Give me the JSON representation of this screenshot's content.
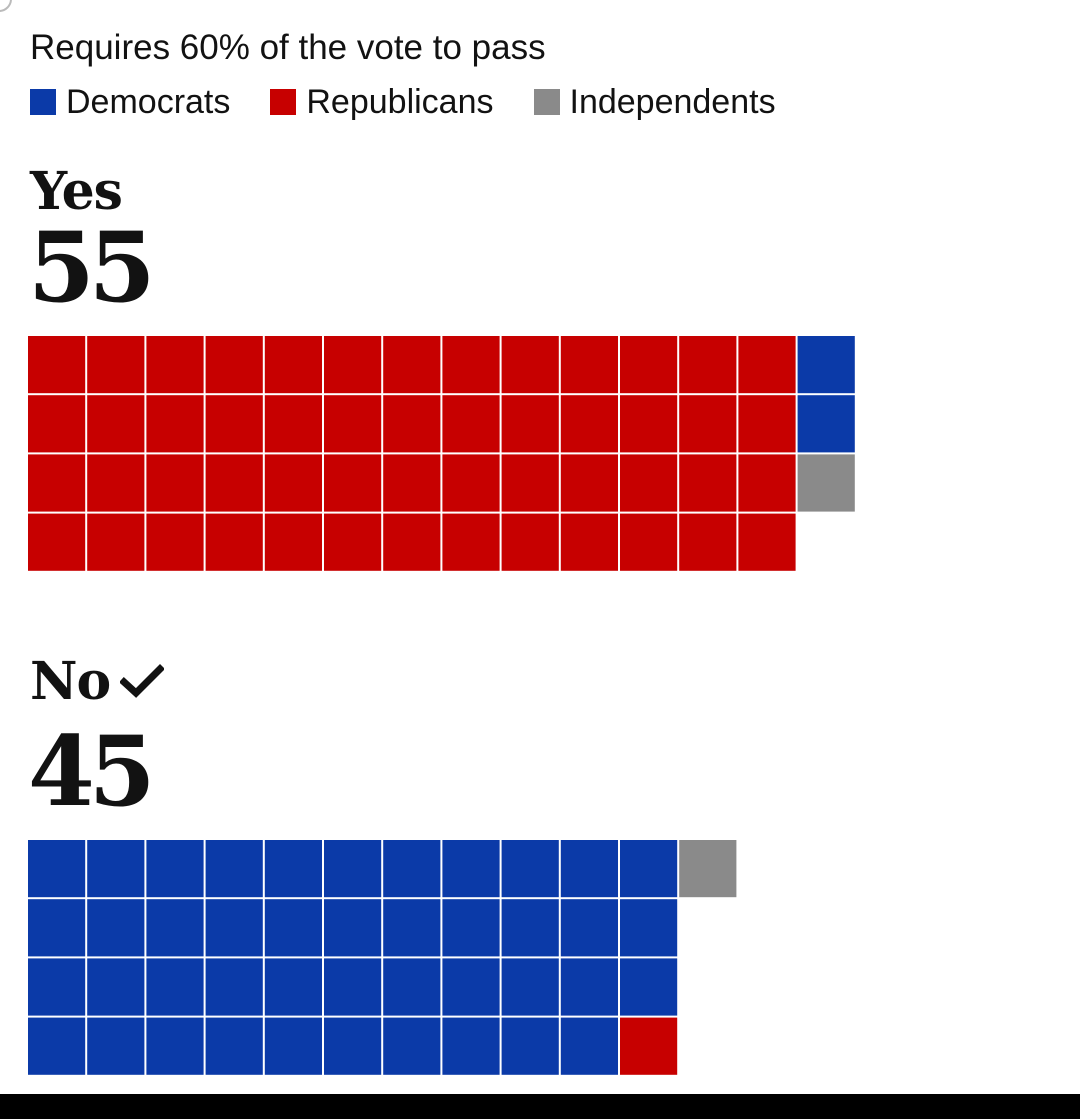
{
  "subtitle": "Requires 60% of the vote to pass",
  "legend": [
    {
      "label": "Democrats",
      "color": "#0b3aa8"
    },
    {
      "label": "Republicans",
      "color": "#c70000"
    },
    {
      "label": "Independents",
      "color": "#8a8a8a"
    }
  ],
  "groups": {
    "yes": {
      "label": "Yes",
      "count": "55"
    },
    "no": {
      "label": "No",
      "count": "45",
      "check_icon": "checkmark-icon"
    }
  },
  "chart_data": {
    "type": "waffle",
    "title": "Requires 60% of the vote to pass",
    "categories": [
      "Democrats",
      "Republicans",
      "Independents"
    ],
    "colors": {
      "Democrats": "#0b3aa8",
      "Republicans": "#c70000",
      "Independents": "#8a8a8a"
    },
    "series": [
      {
        "name": "Yes",
        "total": 55,
        "values": {
          "Republicans": 52,
          "Democrats": 2,
          "Independents": 1
        }
      },
      {
        "name": "No",
        "total": 45,
        "values": {
          "Democrats": 43,
          "Republicans": 1,
          "Independents": 1
        }
      }
    ]
  }
}
